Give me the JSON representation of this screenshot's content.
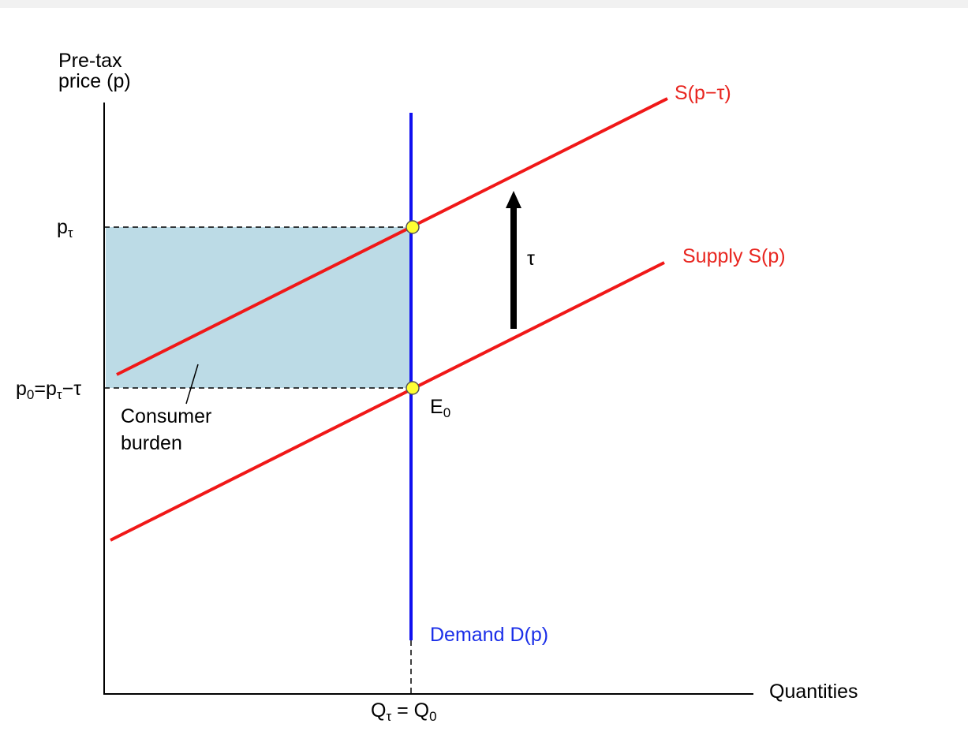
{
  "axes": {
    "y_label": "Pre-tax price (p)",
    "x_label": "Quantities"
  },
  "labels": {
    "p_tau": [
      "p",
      "τ"
    ],
    "p_zero": [
      "p",
      "0",
      "=p",
      "τ",
      "−τ"
    ],
    "consumer_burden": "Consumer burden",
    "equilibrium": [
      "E",
      "0"
    ],
    "tax": "τ",
    "supply_taxed": "S(p−τ)",
    "supply": "Supply S(p)",
    "demand": "Demand D(p)",
    "quantity": [
      "Q",
      "τ",
      " = Q",
      "0"
    ]
  }
}
